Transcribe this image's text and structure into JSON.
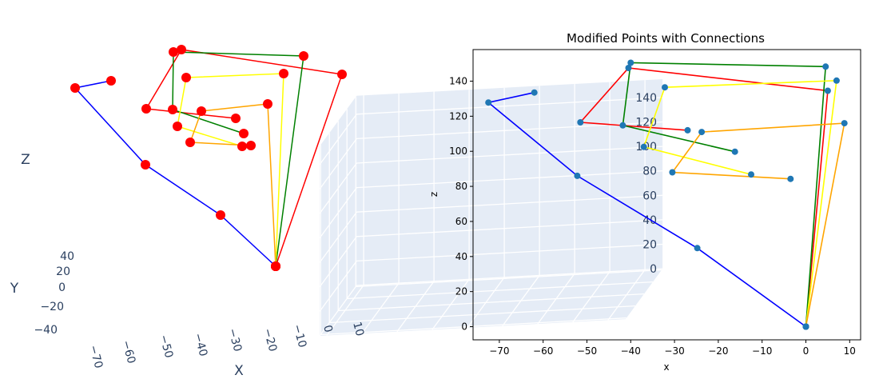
{
  "colors": {
    "connections": [
      "#0000ff",
      "#ff0000",
      "#008000",
      "#ffff00",
      "#ffa500"
    ],
    "plotly_markers": "#ff0000",
    "mpl_markers": "#1f77b4",
    "plotly_scene_bg": "#e5ecf6"
  },
  "chart_data": [
    {
      "type": "scatter3d",
      "title": "",
      "xlabel": "X",
      "ylabel": "Y",
      "zlabel": "Z",
      "xticks": [
        "−70",
        "−60",
        "−50",
        "−40",
        "−30",
        "−20",
        "−10",
        "0",
        "10"
      ],
      "yticks": [
        "40",
        "20",
        "0",
        "−20",
        "−40"
      ],
      "zticks": [
        "140",
        "120",
        "100",
        "80",
        "60",
        "40",
        "20",
        "0"
      ],
      "grid": true,
      "series": [
        {
          "points": [
            [
              -62,
              0,
              133.5
            ],
            [
              -72.5,
              0,
              127.8
            ],
            [
              -52.2,
              0,
              86
            ],
            [
              -24.8,
              0,
              44.8
            ],
            [
              0,
              0,
              0
            ]
          ]
        },
        {
          "points": [
            [
              0,
              0,
              0
            ],
            [
              5,
              0,
              134.5
            ],
            [
              -40.5,
              0,
              147.5
            ],
            [
              -51.5,
              0,
              116.5
            ],
            [
              -27,
              0,
              112
            ]
          ]
        },
        {
          "points": [
            [
              0,
              0,
              0
            ],
            [
              4.5,
              0,
              148.3
            ],
            [
              -40,
              0,
              150.5
            ],
            [
              -41.8,
              0,
              114.8
            ],
            [
              -16.2,
              0,
              99.8
            ]
          ]
        },
        {
          "points": [
            [
              0,
              0,
              0
            ],
            [
              7,
              0,
              140.3
            ],
            [
              -32.2,
              0,
              136.5
            ],
            [
              -37,
              0,
              102.5
            ],
            [
              -12.5,
              0,
              86.8
            ]
          ]
        },
        {
          "points": [
            [
              0,
              0,
              0
            ],
            [
              8.8,
              0,
              116
            ],
            [
              -23.8,
              0,
              111
            ],
            [
              -30.5,
              0,
              88
            ],
            [
              -3.5,
              0,
              84.3
            ]
          ]
        }
      ]
    },
    {
      "type": "scatter",
      "title": "Modified Points with Connections",
      "xlabel": "x",
      "ylabel": "z",
      "xlim": [
        -76,
        12.5
      ],
      "ylim": [
        -7.5,
        158
      ],
      "xticks": [
        -70,
        -60,
        -50,
        -40,
        -30,
        -20,
        -10,
        0,
        10
      ],
      "yticks": [
        0,
        20,
        40,
        60,
        80,
        100,
        120,
        140
      ],
      "grid": false,
      "series": [
        {
          "x": [
            -62,
            -72.5,
            -52.2,
            -24.8,
            0
          ],
          "z": [
            133.5,
            127.8,
            86,
            44.8,
            0
          ]
        },
        {
          "x": [
            0,
            5,
            -40.5,
            -51.5,
            -27
          ],
          "z": [
            0,
            134.5,
            147.5,
            116.5,
            112
          ]
        },
        {
          "x": [
            0,
            4.5,
            -40,
            -41.8,
            -16.2
          ],
          "z": [
            0,
            148.3,
            150.5,
            114.8,
            99.8
          ]
        },
        {
          "x": [
            0,
            7,
            -32.2,
            -37,
            -12.5
          ],
          "z": [
            0,
            140.3,
            136.5,
            102.5,
            86.8
          ]
        },
        {
          "x": [
            0,
            8.8,
            -23.8,
            -30.5,
            -3.5
          ],
          "z": [
            0,
            116,
            111,
            88,
            84.3
          ]
        }
      ]
    }
  ]
}
